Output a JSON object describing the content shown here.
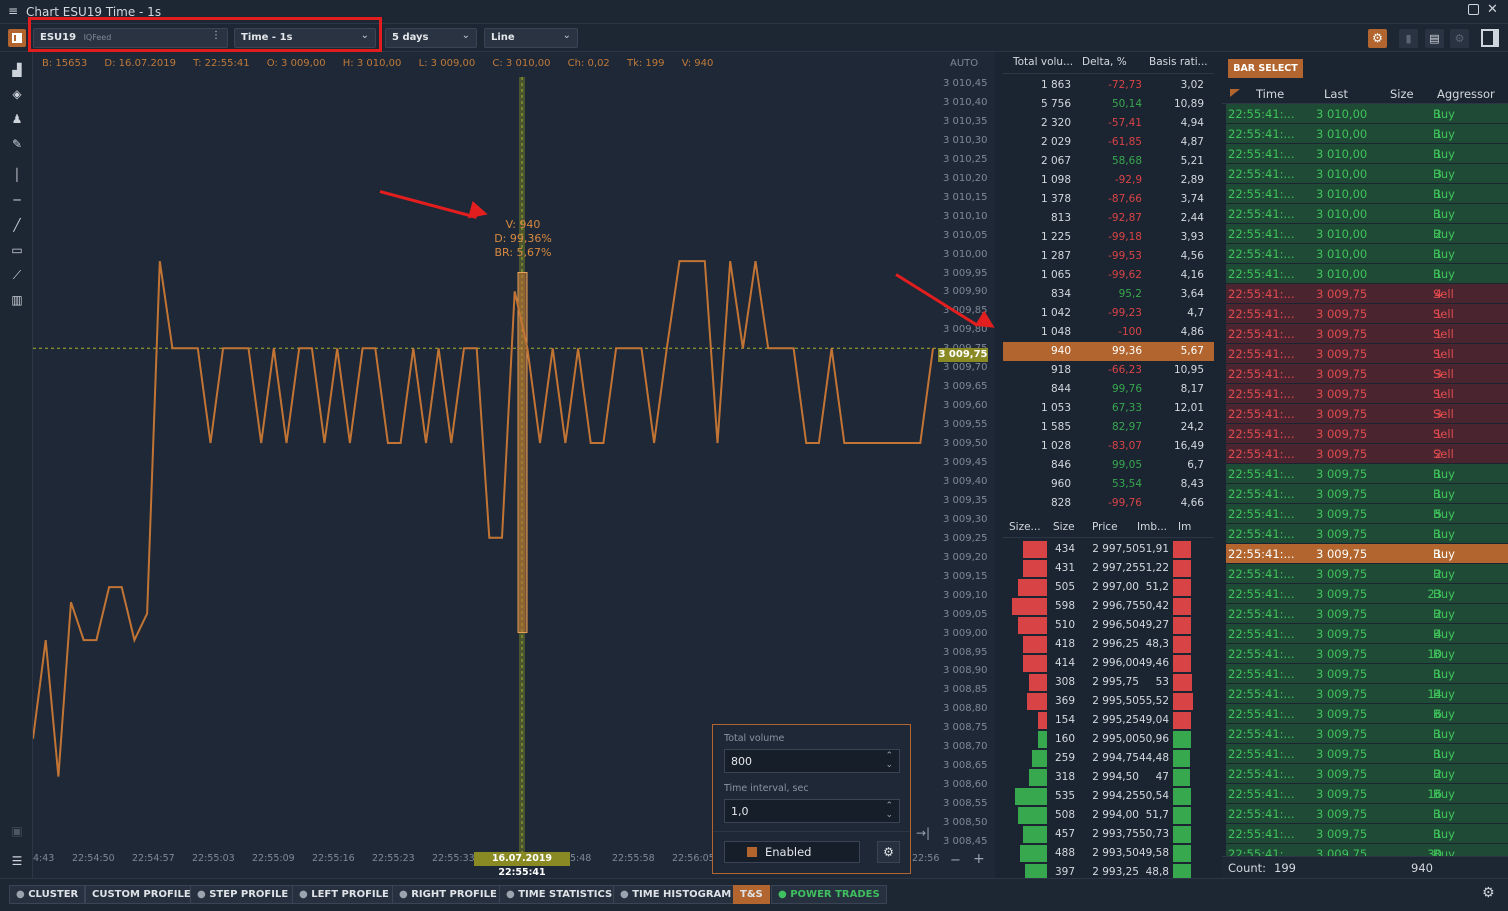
{
  "window": {
    "title": "Chart ESU19 Time - 1s"
  },
  "toolbar": {
    "symbol": "ESU19",
    "feed": "IQFeed",
    "timeframe": "Time - 1s",
    "period": "5 days",
    "chart_type": "Line"
  },
  "info_bar": {
    "bar": "B: 15653",
    "date": "D: 16.07.2019",
    "time": "T: 22:55:41",
    "open": "O: 3 009,00",
    "high": "H: 3 010,00",
    "low": "L: 3 009,00",
    "close": "C: 3 010,00",
    "change": "Ch: 0,02",
    "ticks": "Tk: 199",
    "volume": "V: 940"
  },
  "chart": {
    "auto_label": "AUTO",
    "price_labels": [
      "3 010,45",
      "3 010,40",
      "3 010,35",
      "3 010,30",
      "3 010,25",
      "3 010,20",
      "3 010,15",
      "3 010,10",
      "3 010,05",
      "3 010,00",
      "3 009,95",
      "3 009,90",
      "3 009,85",
      "3 009,80",
      "3 009,75",
      "3 009,70",
      "3 009,65",
      "3 009,60",
      "3 009,55",
      "3 009,50",
      "3 009,45",
      "3 009,40",
      "3 009,35",
      "3 009,30",
      "3 009,25",
      "3 009,20",
      "3 009,15",
      "3 009,10",
      "3 009,05",
      "3 009,00",
      "3 008,95",
      "3 008,90",
      "3 008,85",
      "3 008,80",
      "3 008,75",
      "3 008,70",
      "3 008,65",
      "3 008,60",
      "3 008,55",
      "3 008,50",
      "3 008,45"
    ],
    "current_price": "3 009,75",
    "time_labels": [
      "4:43",
      "22:54:50",
      "22:54:57",
      "22:55:03",
      "22:55:09",
      "22:55:16",
      "22:55:23",
      "22:55:33",
      "5:48",
      "22:55:58",
      "22:56:05",
      "22:56"
    ],
    "crosshair_time": "16.07.2019 22:55:41",
    "tooltip": {
      "v": "V: 940",
      "d": "D: 99,36%",
      "br": "BR: 5,67%"
    },
    "line_color": "#c27434",
    "series": [
      3008.72,
      3008.98,
      3008.62,
      3009.08,
      3008.98,
      3008.98,
      3009.12,
      3009.12,
      3008.98,
      3009.05,
      3009.98,
      3009.75,
      3009.75,
      3009.75,
      3009.5,
      3009.75,
      3009.75,
      3009.75,
      3009.5,
      3009.75,
      3009.5,
      3009.75,
      3009.75,
      3009.5,
      3009.75,
      3009.5,
      3009.75,
      3009.75,
      3009.5,
      3009.5,
      3009.75,
      3009.5,
      3009.75,
      3009.5,
      3009.75,
      3009.75,
      3009.25,
      3009.25,
      3009.9,
      3009.75,
      3009.5,
      3009.75,
      3009.5,
      3009.75,
      3009.5,
      3009.5,
      3009.75,
      3009.75,
      3009.75,
      3009.5,
      3009.75,
      3009.98,
      3009.98,
      3009.98,
      3009.5,
      3009.98,
      3009.75,
      3009.98,
      3009.75,
      3009.75,
      3009.75,
      3009.5,
      3009.5,
      3009.75,
      3009.5,
      3009.5,
      3009.5,
      3009.5,
      3009.5,
      3009.5,
      3009.5,
      3009.75
    ],
    "highlight_bar": {
      "high": "3 009,95",
      "low": "3 009,00"
    }
  },
  "stats_table": {
    "headers": [
      "Total volu...",
      "Delta, %",
      "Basis rati..."
    ],
    "rows": [
      [
        "1 863",
        "-72,73",
        "3,02"
      ],
      [
        "5 756",
        "50,14",
        "10,89"
      ],
      [
        "2 320",
        "-57,41",
        "4,94"
      ],
      [
        "2 029",
        "-61,85",
        "4,87"
      ],
      [
        "2 067",
        "58,68",
        "5,21"
      ],
      [
        "1 098",
        "-92,9",
        "2,89"
      ],
      [
        "1 378",
        "-87,66",
        "3,74"
      ],
      [
        "813",
        "-92,87",
        "2,44"
      ],
      [
        "1 225",
        "-99,18",
        "3,93"
      ],
      [
        "1 287",
        "-99,53",
        "4,56"
      ],
      [
        "1 065",
        "-99,62",
        "4,16"
      ],
      [
        "834",
        "95,2",
        "3,64"
      ],
      [
        "1 042",
        "-99,23",
        "4,7"
      ],
      [
        "1 048",
        "-100",
        "4,86"
      ],
      [
        "940",
        "99,36",
        "5,67"
      ],
      [
        "918",
        "-66,23",
        "10,95"
      ],
      [
        "844",
        "99,76",
        "8,17"
      ],
      [
        "1 053",
        "67,33",
        "12,01"
      ],
      [
        "1 585",
        "82,97",
        "24,2"
      ],
      [
        "1 028",
        "-83,07",
        "16,49"
      ],
      [
        "846",
        "99,05",
        "6,7"
      ],
      [
        "960",
        "53,54",
        "8,43"
      ],
      [
        "828",
        "-99,76",
        "4,66"
      ]
    ],
    "highlight_index": 14
  },
  "dom_table": {
    "headers": [
      "Size...",
      "Size",
      "Price",
      "Imb...",
      "Im"
    ],
    "rows": [
      [
        "434",
        "2 997,50",
        "51,91",
        "sell",
        0.55,
        0.9
      ],
      [
        "431",
        "2 997,25",
        "51,22",
        "sell",
        0.55,
        0.9
      ],
      [
        "505",
        "2 997,00",
        "51,2",
        "sell",
        0.65,
        0.9
      ],
      [
        "598",
        "2 996,75",
        "50,42",
        "sell",
        0.8,
        0.9
      ],
      [
        "510",
        "2 996,50",
        "49,27",
        "sell",
        0.65,
        0.9
      ],
      [
        "418",
        "2 996,25",
        "48,3",
        "sell",
        0.55,
        0.9
      ],
      [
        "414",
        "2 996,00",
        "49,46",
        "sell",
        0.55,
        0.9
      ],
      [
        "308",
        "2 995,75",
        "53",
        "sell",
        0.4,
        0.95
      ],
      [
        "369",
        "2 995,50",
        "55,52",
        "sell",
        0.45,
        1.0
      ],
      [
        "154",
        "2 995,25",
        "49,04",
        "sell",
        0.2,
        0.9
      ],
      [
        "160",
        "2 995,00",
        "50,96",
        "buy",
        0.2,
        0.9
      ],
      [
        "259",
        "2 994,75",
        "44,48",
        "buy",
        0.35,
        0.85
      ],
      [
        "318",
        "2 994,50",
        "47",
        "buy",
        0.4,
        0.85
      ],
      [
        "535",
        "2 994,25",
        "50,54",
        "buy",
        0.72,
        0.9
      ],
      [
        "508",
        "2 994,00",
        "51,7",
        "buy",
        0.65,
        0.9
      ],
      [
        "457",
        "2 993,75",
        "50,73",
        "buy",
        0.55,
        0.9
      ],
      [
        "488",
        "2 993,50",
        "49,58",
        "buy",
        0.62,
        0.9
      ],
      [
        "397",
        "2 993,25",
        "48,8",
        "buy",
        0.5,
        0.9
      ]
    ]
  },
  "time_sales": {
    "bar_select_label": "BAR SELECT",
    "headers": [
      "Time",
      "Last",
      "Size",
      "Aggressor"
    ],
    "rows": [
      [
        "22:55:41:...",
        "3 010,00",
        "1",
        "Buy"
      ],
      [
        "22:55:41:...",
        "3 010,00",
        "1",
        "Buy"
      ],
      [
        "22:55:41:...",
        "3 010,00",
        "1",
        "Buy"
      ],
      [
        "22:55:41:...",
        "3 010,00",
        "3",
        "Buy"
      ],
      [
        "22:55:41:...",
        "3 010,00",
        "1",
        "Buy"
      ],
      [
        "22:55:41:...",
        "3 010,00",
        "1",
        "Buy"
      ],
      [
        "22:55:41:...",
        "3 010,00",
        "2",
        "Buy"
      ],
      [
        "22:55:41:...",
        "3 010,00",
        "1",
        "Buy"
      ],
      [
        "22:55:41:...",
        "3 010,00",
        "1",
        "Buy"
      ],
      [
        "22:55:41:...",
        "3 009,75",
        "4",
        "Sell"
      ],
      [
        "22:55:41:...",
        "3 009,75",
        "1",
        "Sell"
      ],
      [
        "22:55:41:...",
        "3 009,75",
        "1",
        "Sell"
      ],
      [
        "22:55:41:...",
        "3 009,75",
        "1",
        "Sell"
      ],
      [
        "22:55:41:...",
        "3 009,75",
        "3",
        "Sell"
      ],
      [
        "22:55:41:...",
        "3 009,75",
        "1",
        "Sell"
      ],
      [
        "22:55:41:...",
        "3 009,75",
        "3",
        "Sell"
      ],
      [
        "22:55:41:...",
        "3 009,75",
        "1",
        "Sell"
      ],
      [
        "22:55:41:...",
        "3 009,75",
        "2",
        "Sell"
      ],
      [
        "22:55:41:...",
        "3 009,75",
        "1",
        "Buy"
      ],
      [
        "22:55:41:...",
        "3 009,75",
        "1",
        "Buy"
      ],
      [
        "22:55:41:...",
        "3 009,75",
        "5",
        "Buy"
      ],
      [
        "22:55:41:...",
        "3 009,75",
        "1",
        "Buy"
      ],
      [
        "22:55:41:...",
        "3 009,75",
        "1",
        "Buy"
      ],
      [
        "22:55:41:...",
        "3 009,75",
        "2",
        "Buy"
      ],
      [
        "22:55:41:...",
        "3 009,75",
        "23",
        "Buy"
      ],
      [
        "22:55:41:...",
        "3 009,75",
        "2",
        "Buy"
      ],
      [
        "22:55:41:...",
        "3 009,75",
        "4",
        "Buy"
      ],
      [
        "22:55:41:...",
        "3 009,75",
        "10",
        "Buy"
      ],
      [
        "22:55:41:...",
        "3 009,75",
        "1",
        "Buy"
      ],
      [
        "22:55:41:...",
        "3 009,75",
        "14",
        "Buy"
      ],
      [
        "22:55:41:...",
        "3 009,75",
        "6",
        "Buy"
      ],
      [
        "22:55:41:...",
        "3 009,75",
        "1",
        "Buy"
      ],
      [
        "22:55:41:...",
        "3 009,75",
        "1",
        "Buy"
      ],
      [
        "22:55:41:...",
        "3 009,75",
        "2",
        "Buy"
      ],
      [
        "22:55:41:...",
        "3 009,75",
        "16",
        "Buy"
      ],
      [
        "22:55:41:...",
        "3 009,75",
        "1",
        "Buy"
      ],
      [
        "22:55:41:...",
        "3 009,75",
        "1",
        "Buy"
      ],
      [
        "22:55:41:...",
        "3 009,75",
        "30",
        "Buy"
      ]
    ],
    "highlight_index": 22,
    "count_label": "Count:",
    "count_value": "199",
    "volume_total": "940"
  },
  "popup": {
    "total_volume_label": "Total volume",
    "total_volume_value": "800",
    "interval_label": "Time interval, sec",
    "interval_value": "1,0",
    "enabled_label": "Enabled"
  },
  "bottom_tabs": [
    "CLUSTER",
    "CUSTOM PROFILE",
    "STEP PROFILE",
    "LEFT PROFILE",
    "RIGHT PROFILE",
    "TIME STATISTICS",
    "TIME HISTOGRAM",
    "T&S",
    "POWER TRADES"
  ],
  "colors": {
    "accent": "#b2652e",
    "buy": "#37a84e",
    "sell": "#d84446",
    "buy_row": "#1f4a35",
    "sell_row": "#4a2530"
  }
}
